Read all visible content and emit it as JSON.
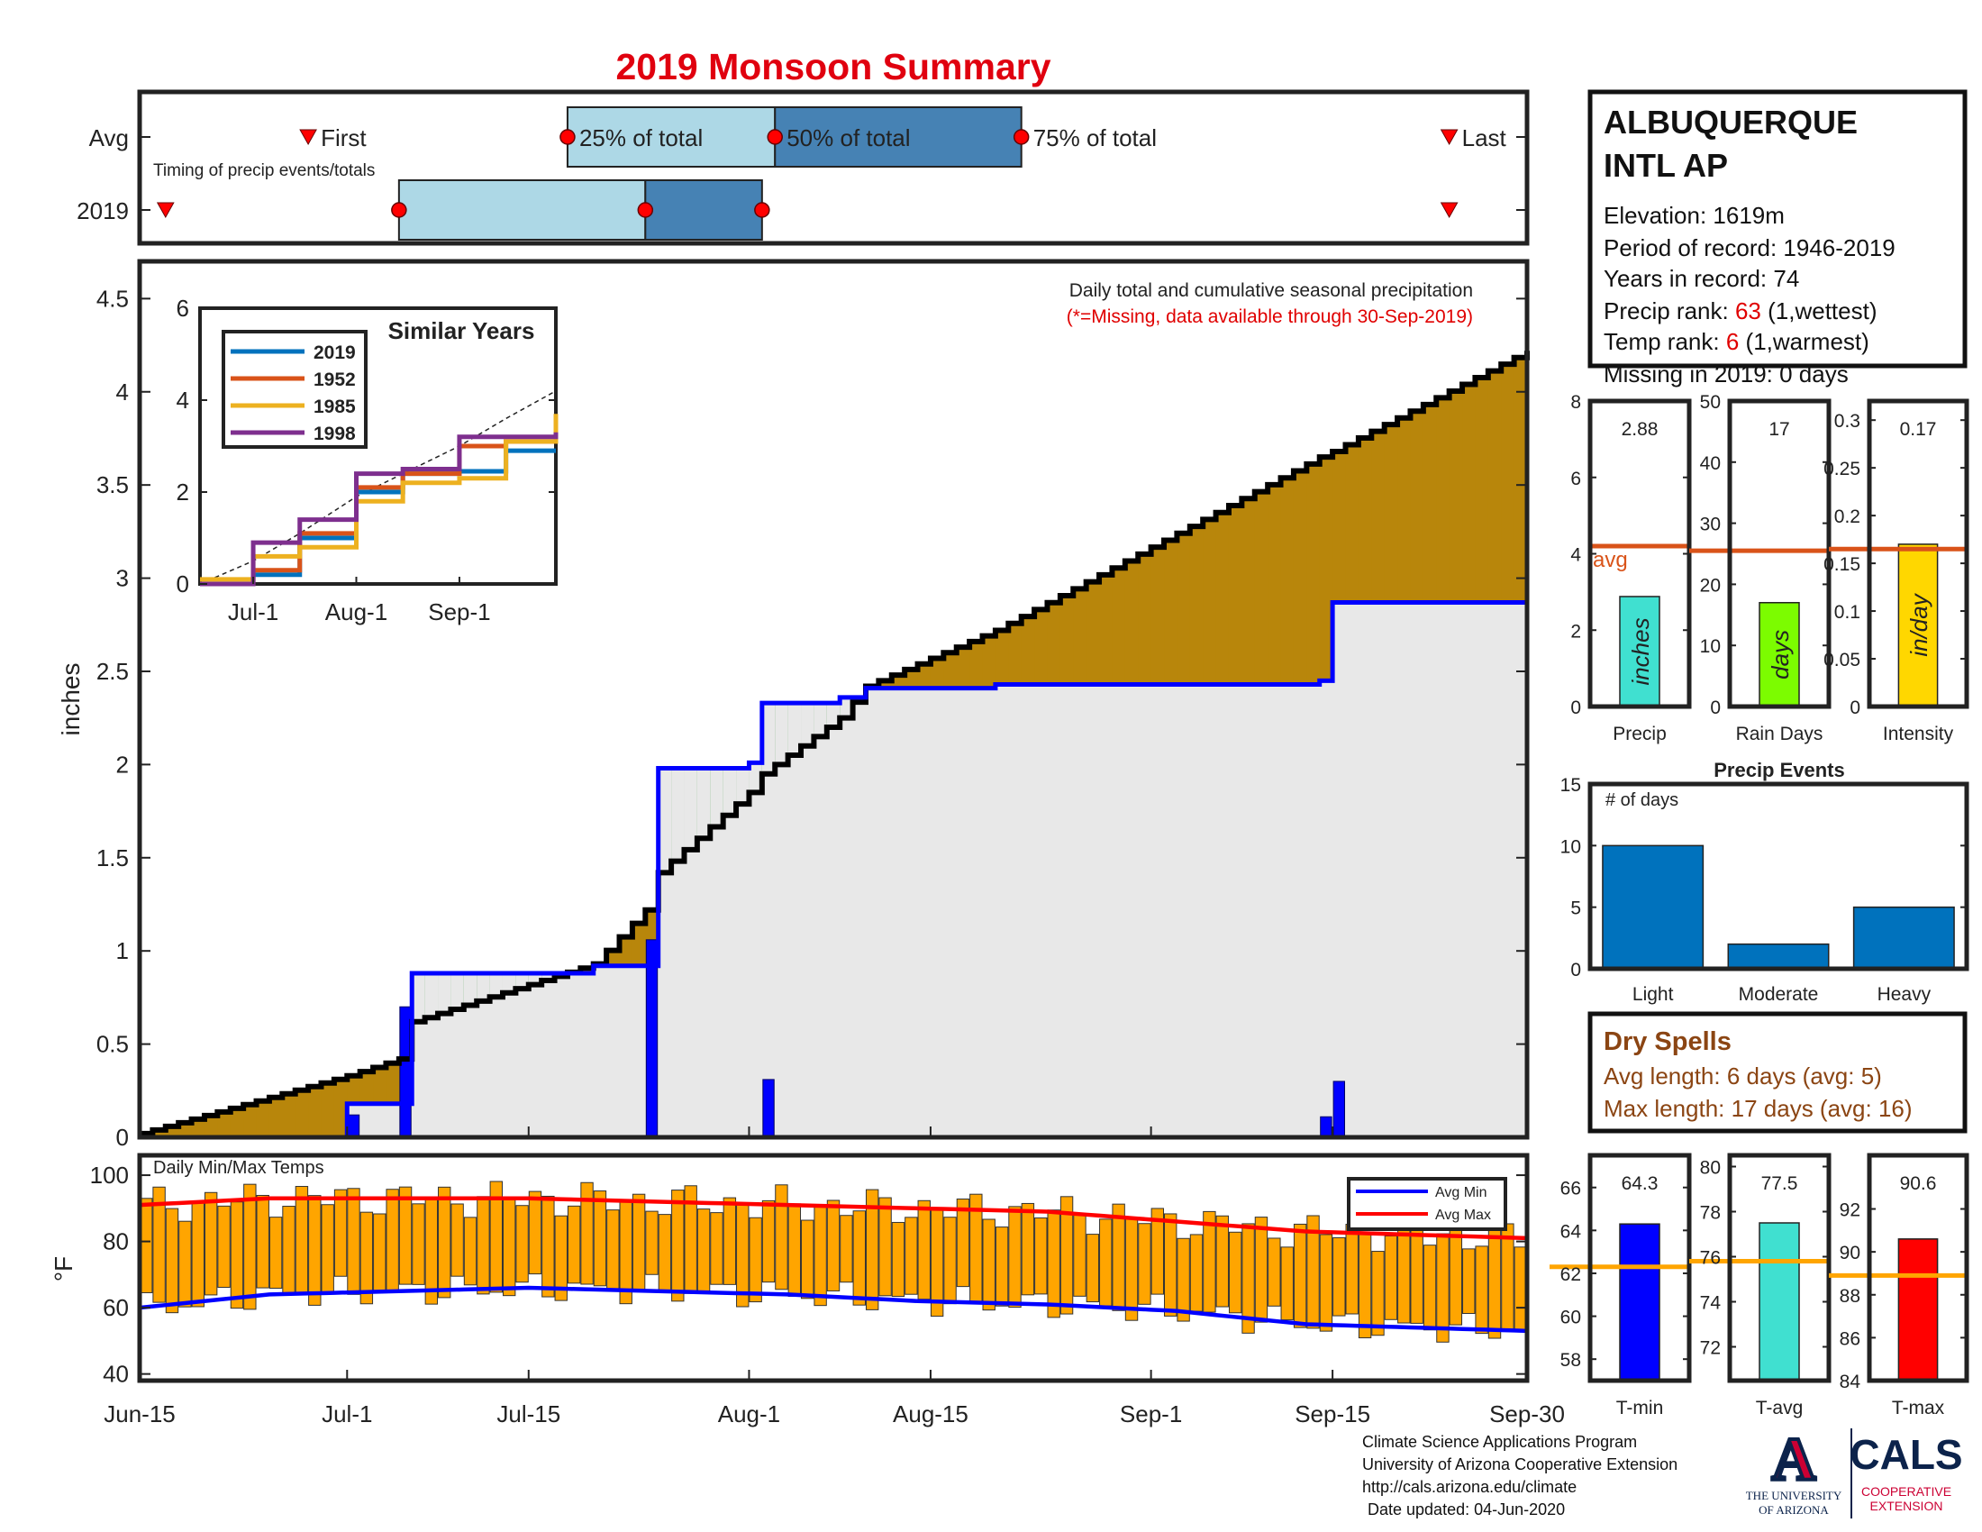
{
  "title": "2019 Monsoon Summary",
  "timing": {
    "row_labels": [
      "Avg",
      "2019"
    ],
    "caption": "Timing of precip events/totals",
    "avg": {
      "first": "Jun-28",
      "p25": "Jul-18",
      "p50": "Aug-3",
      "p75": "Aug-22",
      "last": "Sep-24"
    },
    "y2019": {
      "first": "Jun-17",
      "p25": "Jul-5",
      "p50": "Jul-24",
      "p75": "Aug-2",
      "last": "Sep-24"
    },
    "marker_labels": {
      "first": "First",
      "p25": "25% of total",
      "p50": "50% of total",
      "p75": "75% of total",
      "last": "Last"
    },
    "colors": {
      "light": "#add8e6",
      "dark": "#4682b4",
      "marker": "#ff0000"
    }
  },
  "station": {
    "name_line1": "ALBUQUERQUE",
    "name_line2": "INTL AP",
    "elevation": "Elevation: 1619m",
    "period": "Period of record: 1946-2019",
    "years": "Years in record: 74",
    "precip_rank_label": "Precip rank:",
    "precip_rank_value": "63",
    "precip_rank_note": "(1,wettest)",
    "temp_rank_label": "Temp rank:",
    "temp_rank_value": "6",
    "temp_rank_note": "(1,warmest)",
    "missing": "Missing in 2019: 0 days"
  },
  "main_chart": {
    "ylabel": "inches",
    "note_line1": "Daily total and cumulative seasonal precipitation",
    "note_line2": "(*=Missing, data available through 30-Sep-2019)",
    "ylim": [
      0,
      4.7
    ],
    "yticks": [
      0,
      0.5,
      1,
      1.5,
      2,
      2.5,
      3,
      3.5,
      4,
      4.5
    ],
    "x_dates": [
      "Jun-15",
      "Jul-1",
      "Jul-15",
      "Aug-1",
      "Aug-15",
      "Sep-1",
      "Sep-15",
      "Sep-30"
    ],
    "colors": {
      "above": "#228b22",
      "below": "#b8860b",
      "fill2019": "#e8e8e8",
      "line2019": "#0000ff",
      "avg": "#000000"
    }
  },
  "chart_data": [
    {
      "type": "area",
      "title": "Daily total and cumulative seasonal precipitation",
      "ylabel": "inches",
      "ylim": [
        0,
        4.7
      ],
      "x": [
        "Jun-15",
        "Jul-1",
        "Jul-5",
        "Jul-6",
        "Jul-20",
        "Jul-24",
        "Jul-25",
        "Aug-1",
        "Aug-2",
        "Aug-8",
        "Aug-10",
        "Aug-20",
        "Sep-14",
        "Sep-15",
        "Sep-30"
      ],
      "series": [
        {
          "name": "2019",
          "values": [
            0.0,
            0.18,
            0.18,
            0.88,
            0.92,
            0.92,
            1.98,
            2.01,
            2.33,
            2.36,
            2.41,
            2.43,
            2.45,
            2.87,
            2.88
          ]
        },
        {
          "name": "Avg",
          "values": [
            0.02,
            0.33,
            0.42,
            0.62,
            0.93,
            1.22,
            1.42,
            1.85,
            1.95,
            2.25,
            2.42,
            2.72,
            3.65,
            3.68,
            4.22
          ]
        }
      ],
      "daily_totals": [
        {
          "x": "Jul-1",
          "value": 0.12
        },
        {
          "x": "Jul-5",
          "value": 0.7
        },
        {
          "x": "Jul-24",
          "value": 1.06
        },
        {
          "x": "Aug-2",
          "value": 0.31
        },
        {
          "x": "Sep-14",
          "value": 0.11
        },
        {
          "x": "Sep-15",
          "value": 0.3
        }
      ]
    },
    {
      "type": "line",
      "title": "Similar Years",
      "ylim": [
        0,
        6
      ],
      "yticks": [
        0,
        2,
        4,
        6
      ],
      "xticks": [
        "Jul-1",
        "Aug-1",
        "Sep-1"
      ],
      "x": [
        "Jun-15",
        "Jul-1",
        "Jul-15",
        "Aug-1",
        "Aug-15",
        "Sep-1",
        "Sep-15",
        "Sep-30"
      ],
      "series": [
        {
          "name": "2019",
          "color": "#0072bd",
          "values": [
            0,
            0.2,
            1.0,
            2.0,
            2.4,
            2.45,
            2.9,
            2.9
          ]
        },
        {
          "name": "1952",
          "color": "#d95319",
          "values": [
            0,
            0.3,
            1.1,
            2.1,
            2.4,
            3.0,
            3.1,
            3.4
          ]
        },
        {
          "name": "1985",
          "color": "#edb120",
          "values": [
            0.1,
            0.6,
            0.8,
            1.8,
            2.2,
            2.3,
            3.1,
            3.7
          ]
        },
        {
          "name": "1998",
          "color": "#7e2f8e",
          "values": [
            0,
            0.9,
            1.4,
            2.4,
            2.5,
            3.2,
            3.2,
            3.3
          ]
        }
      ],
      "avg_dashed": [
        0,
        0.5,
        1.1,
        1.9,
        2.4,
        3.0,
        3.6,
        4.2
      ]
    },
    {
      "type": "bar",
      "title": "Daily Min/Max Temps",
      "ylabel": "°F",
      "ylim": [
        38,
        106
      ],
      "yticks": [
        40,
        60,
        80,
        100
      ],
      "legend": [
        "Avg Min",
        "Avg Max"
      ],
      "avg_max": [
        91,
        93,
        93,
        93,
        92,
        91,
        90,
        89,
        86,
        83,
        81
      ],
      "avg_min": [
        60,
        64,
        65,
        66,
        65,
        64,
        62,
        61,
        59,
        55,
        53
      ],
      "x_days": [
        0,
        10,
        20,
        30,
        40,
        50,
        60,
        70,
        80,
        90,
        107
      ]
    },
    {
      "type": "bar",
      "categories": [
        "Precip"
      ],
      "values": [
        2.88
      ],
      "avg": 4.2,
      "ylim": [
        0,
        8
      ],
      "yticks": [
        0,
        2,
        4,
        6,
        8
      ],
      "unit": "inches",
      "label": "2.88",
      "avg_label": "avg",
      "color": "#40e0d0"
    },
    {
      "type": "bar",
      "categories": [
        "Rain Days"
      ],
      "values": [
        17
      ],
      "avg": 25.5,
      "ylim": [
        0,
        50
      ],
      "yticks": [
        0,
        10,
        20,
        30,
        40,
        50
      ],
      "unit": "days",
      "label": "17",
      "color": "#7cfc00"
    },
    {
      "type": "bar",
      "categories": [
        "Intensity"
      ],
      "values": [
        0.17
      ],
      "avg": 0.165,
      "ylim": [
        0,
        0.32
      ],
      "yticks": [
        0,
        0.05,
        0.1,
        0.15,
        0.2,
        0.25,
        0.3
      ],
      "unit": "in/day",
      "label": "0.17",
      "color": "#ffd700"
    },
    {
      "type": "bar",
      "title": "Precip Events",
      "ylabel": "# of days",
      "categories": [
        "Light",
        "Moderate",
        "Heavy"
      ],
      "values": [
        10,
        2,
        5
      ],
      "ylim": [
        0,
        15
      ],
      "yticks": [
        0,
        5,
        10,
        15
      ],
      "color": "#0072bd"
    },
    {
      "type": "bar",
      "categories": [
        "T-min"
      ],
      "values": [
        64.3
      ],
      "avg": 62.3,
      "ylim": [
        57,
        67.5
      ],
      "yticks": [
        58,
        60,
        62,
        64,
        66
      ],
      "label": "64.3",
      "color": "#0000ff"
    },
    {
      "type": "bar",
      "categories": [
        "T-avg"
      ],
      "values": [
        77.5
      ],
      "avg": 75.8,
      "ylim": [
        70.5,
        80.5
      ],
      "yticks": [
        72,
        74,
        76,
        78,
        80
      ],
      "label": "77.5",
      "color": "#40e0d0"
    },
    {
      "type": "bar",
      "categories": [
        "T-max"
      ],
      "values": [
        90.6
      ],
      "avg": 88.9,
      "ylim": [
        84,
        94.5
      ],
      "yticks": [
        84,
        86,
        88,
        90,
        92
      ],
      "label": "90.6",
      "color": "#ff0000"
    }
  ],
  "dry_spells": {
    "title": "Dry Spells",
    "avg_length": "Avg length: 6 days (avg: 5)",
    "max_length": "Max length: 17 days (avg: 16)"
  },
  "footer": {
    "line1": "Climate Science Applications Program",
    "line2": "University of Arizona Cooperative Extension",
    "line3": "http://cals.arizona.edu/climate",
    "line4": "Date updated: 04-Jun-2020",
    "ua_logo_letter": "A",
    "ua_line1": "THE UNIVERSITY",
    "ua_line2": "OF ARIZONA",
    "cals": "CALS",
    "cals_line1": "COOPERATIVE",
    "cals_line2": "EXTENSION"
  }
}
